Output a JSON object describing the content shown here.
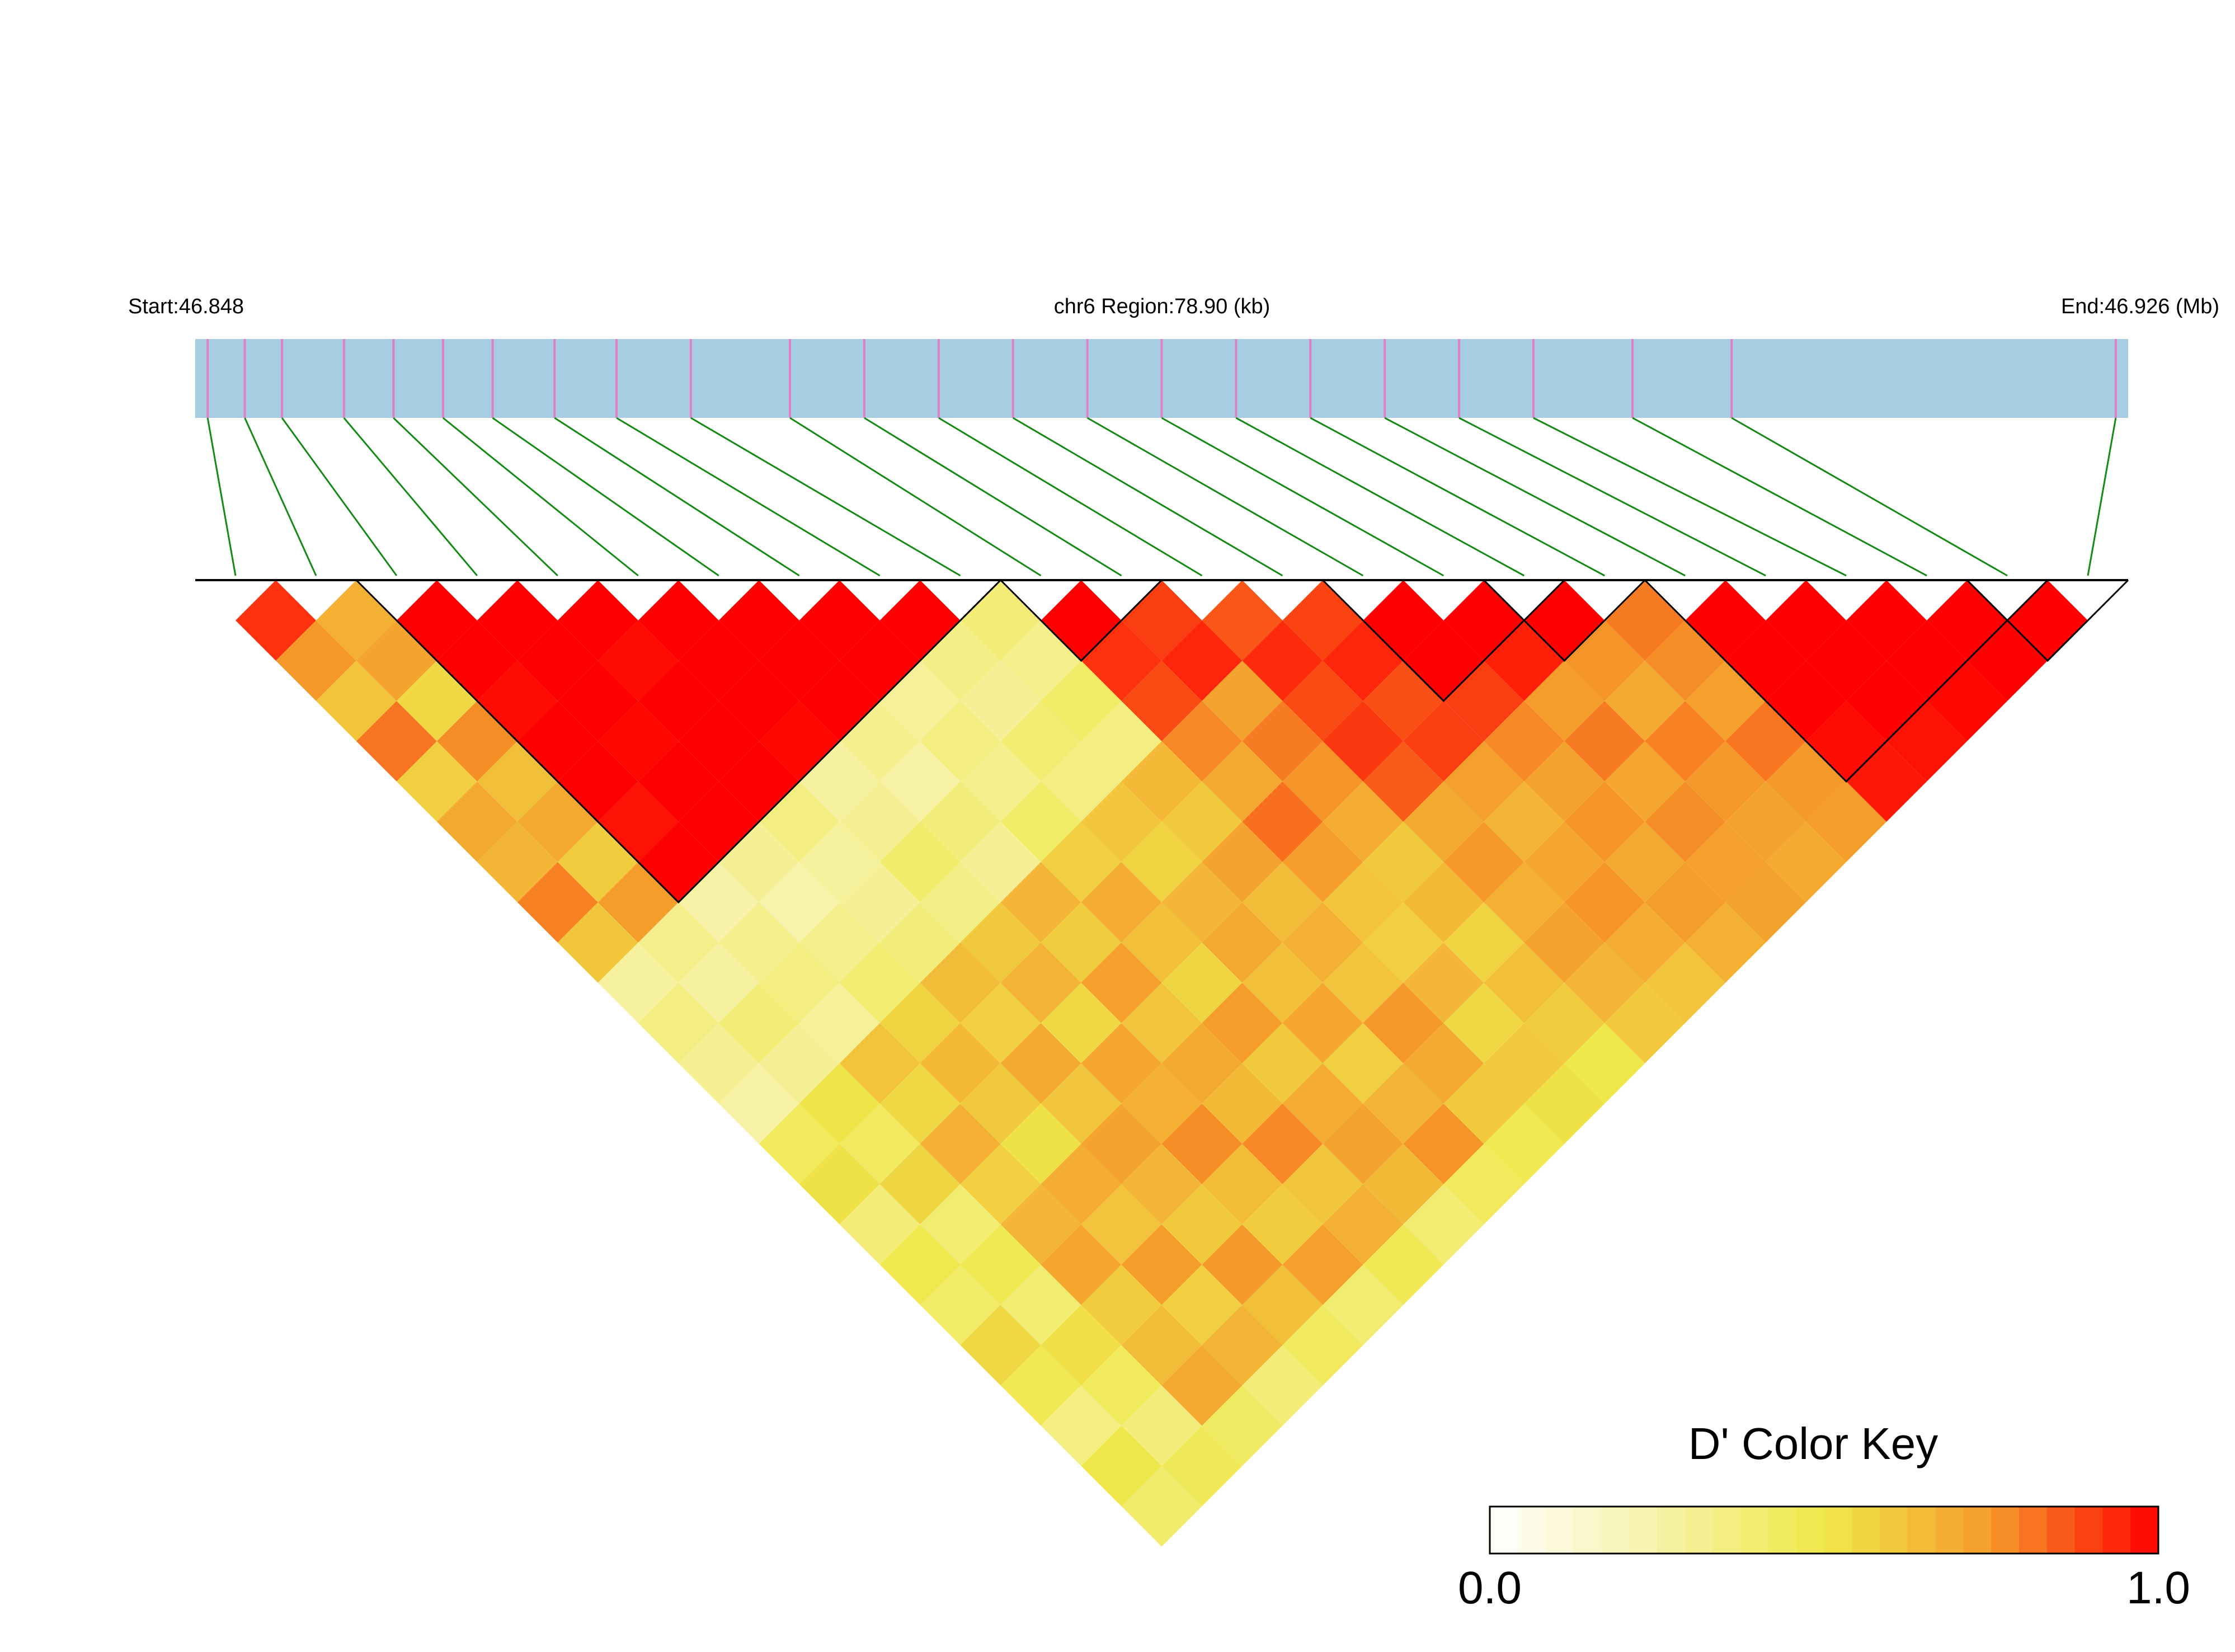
{
  "chart_data": {
    "type": "ld_heatmap",
    "start_label": "Start:46.848",
    "region_label": "chr6 Region:78.90 (kb)",
    "end_label": "End:46.926 (Mb)",
    "xlim": [
      46.848,
      46.926
    ],
    "snp_positions": [
      46.8485,
      46.85,
      46.8515,
      46.854,
      46.856,
      46.858,
      46.86,
      46.8625,
      46.865,
      46.868,
      46.872,
      46.875,
      46.878,
      46.881,
      46.884,
      46.887,
      46.89,
      46.893,
      46.896,
      46.899,
      46.902,
      46.906,
      46.91,
      46.9255
    ],
    "track_color": "#a6cde2",
    "snp_color": "#e27fc4",
    "link_color": "#138a13",
    "color_stops": [
      "#ffffff",
      "#f7f2a8",
      "#efe84a",
      "#f59a2a",
      "#ff0000"
    ],
    "ld": [
      [
        0.92,
        0.75,
        0.62,
        0.81,
        0.58,
        0.7,
        0.66,
        0.79,
        0.61,
        0.28,
        0.35,
        0.31,
        0.26,
        0.45,
        0.52,
        0.38,
        0.49,
        0.42,
        0.55,
        0.47,
        0.36,
        0.5,
        0.41
      ],
      [
        0.68,
        0.72,
        0.55,
        0.77,
        0.63,
        0.7,
        0.59,
        0.74,
        0.33,
        0.27,
        0.38,
        0.3,
        0.51,
        0.44,
        0.56,
        0.4,
        0.48,
        0.39,
        0.53,
        0.45,
        0.37,
        0.46
      ],
      [
        1,
        1,
        0.98,
        1,
        1,
        0.97,
        1,
        0.25,
        0.32,
        0.36,
        0.29,
        0.62,
        0.55,
        0.68,
        0.58,
        0.66,
        0.71,
        0.59,
        0.64,
        0.7,
        0.43
      ],
      [
        1,
        1,
        1,
        0.99,
        1,
        1,
        0.3,
        0.24,
        0.33,
        0.4,
        0.57,
        0.65,
        0.6,
        0.52,
        0.69,
        0.62,
        0.74,
        0.58,
        0.67,
        0.38
      ],
      [
        1,
        0.98,
        1,
        1,
        1,
        0.35,
        0.28,
        0.3,
        0.37,
        0.64,
        0.58,
        0.7,
        0.61,
        0.72,
        0.66,
        0.6,
        0.75,
        0.63,
        0.44
      ],
      [
        1,
        1,
        1,
        0.99,
        0.27,
        0.31,
        0.41,
        0.34,
        0.6,
        0.67,
        0.55,
        0.71,
        0.68,
        0.77,
        0.64,
        0.59,
        0.73,
        0.4
      ],
      [
        1,
        1,
        1,
        0.32,
        0.26,
        0.37,
        0.3,
        0.66,
        0.59,
        0.73,
        0.62,
        0.7,
        0.65,
        0.78,
        0.61,
        0.68,
        0.47
      ],
      [
        1,
        1,
        0.29,
        0.36,
        0.33,
        0.42,
        0.58,
        0.69,
        0.63,
        0.56,
        0.74,
        0.6,
        0.69,
        0.72,
        0.65,
        0.39
      ],
      [
        1,
        0.34,
        0.3,
        0.39,
        0.35,
        0.61,
        0.57,
        0.66,
        0.7,
        0.63,
        0.71,
        0.58,
        0.67,
        0.76,
        0.45
      ],
      [
        0.38,
        0.33,
        0.42,
        0.36,
        0.65,
        0.6,
        0.72,
        0.64,
        0.68,
        0.62,
        0.75,
        0.7,
        0.6,
        0.48
      ],
      [
        1,
        0.92,
        0.88,
        0.78,
        0.7,
        0.82,
        0.74,
        0.62,
        0.58,
        0.66,
        0.55,
        0.6,
        0.52
      ],
      [
        0.9,
        0.94,
        0.72,
        0.8,
        0.76,
        0.69,
        0.6,
        0.65,
        0.57,
        0.63,
        0.59,
        0.5
      ],
      [
        0.86,
        0.93,
        0.88,
        0.91,
        0.85,
        0.7,
        0.75,
        0.68,
        0.72,
        0.66,
        0.6
      ],
      [
        0.89,
        0.94,
        0.87,
        0.9,
        0.73,
        0.67,
        0.71,
        0.76,
        0.69,
        0.62
      ],
      [
        1,
        1,
        0.9,
        0.78,
        0.72,
        0.76,
        0.7,
        0.74,
        0.68
      ],
      [
        1,
        0.95,
        0.74,
        0.8,
        0.71,
        0.77,
        0.73,
        0.72
      ],
      [
        1,
        0.76,
        0.7,
        0.79,
        0.75,
        0.72,
        0.7
      ],
      [
        0.8,
        0.77,
        0.73,
        0.81,
        0.75,
        0.74
      ],
      [
        1,
        1,
        1,
        0.98,
        0.96
      ],
      [
        1,
        1,
        1,
        0.97
      ],
      [
        1,
        1,
        0.99
      ],
      [
        1,
        1
      ],
      [
        1
      ]
    ],
    "blocks": [
      [
        2,
        9
      ],
      [
        10,
        11
      ],
      [
        14,
        16
      ],
      [
        16,
        17
      ],
      [
        18,
        22
      ],
      [
        22,
        23
      ]
    ],
    "color_key": {
      "title": "D' Color Key",
      "ticks": [
        {
          "value": 0,
          "label": "0.0"
        },
        {
          "value": 1,
          "label": "1.0"
        }
      ]
    }
  }
}
